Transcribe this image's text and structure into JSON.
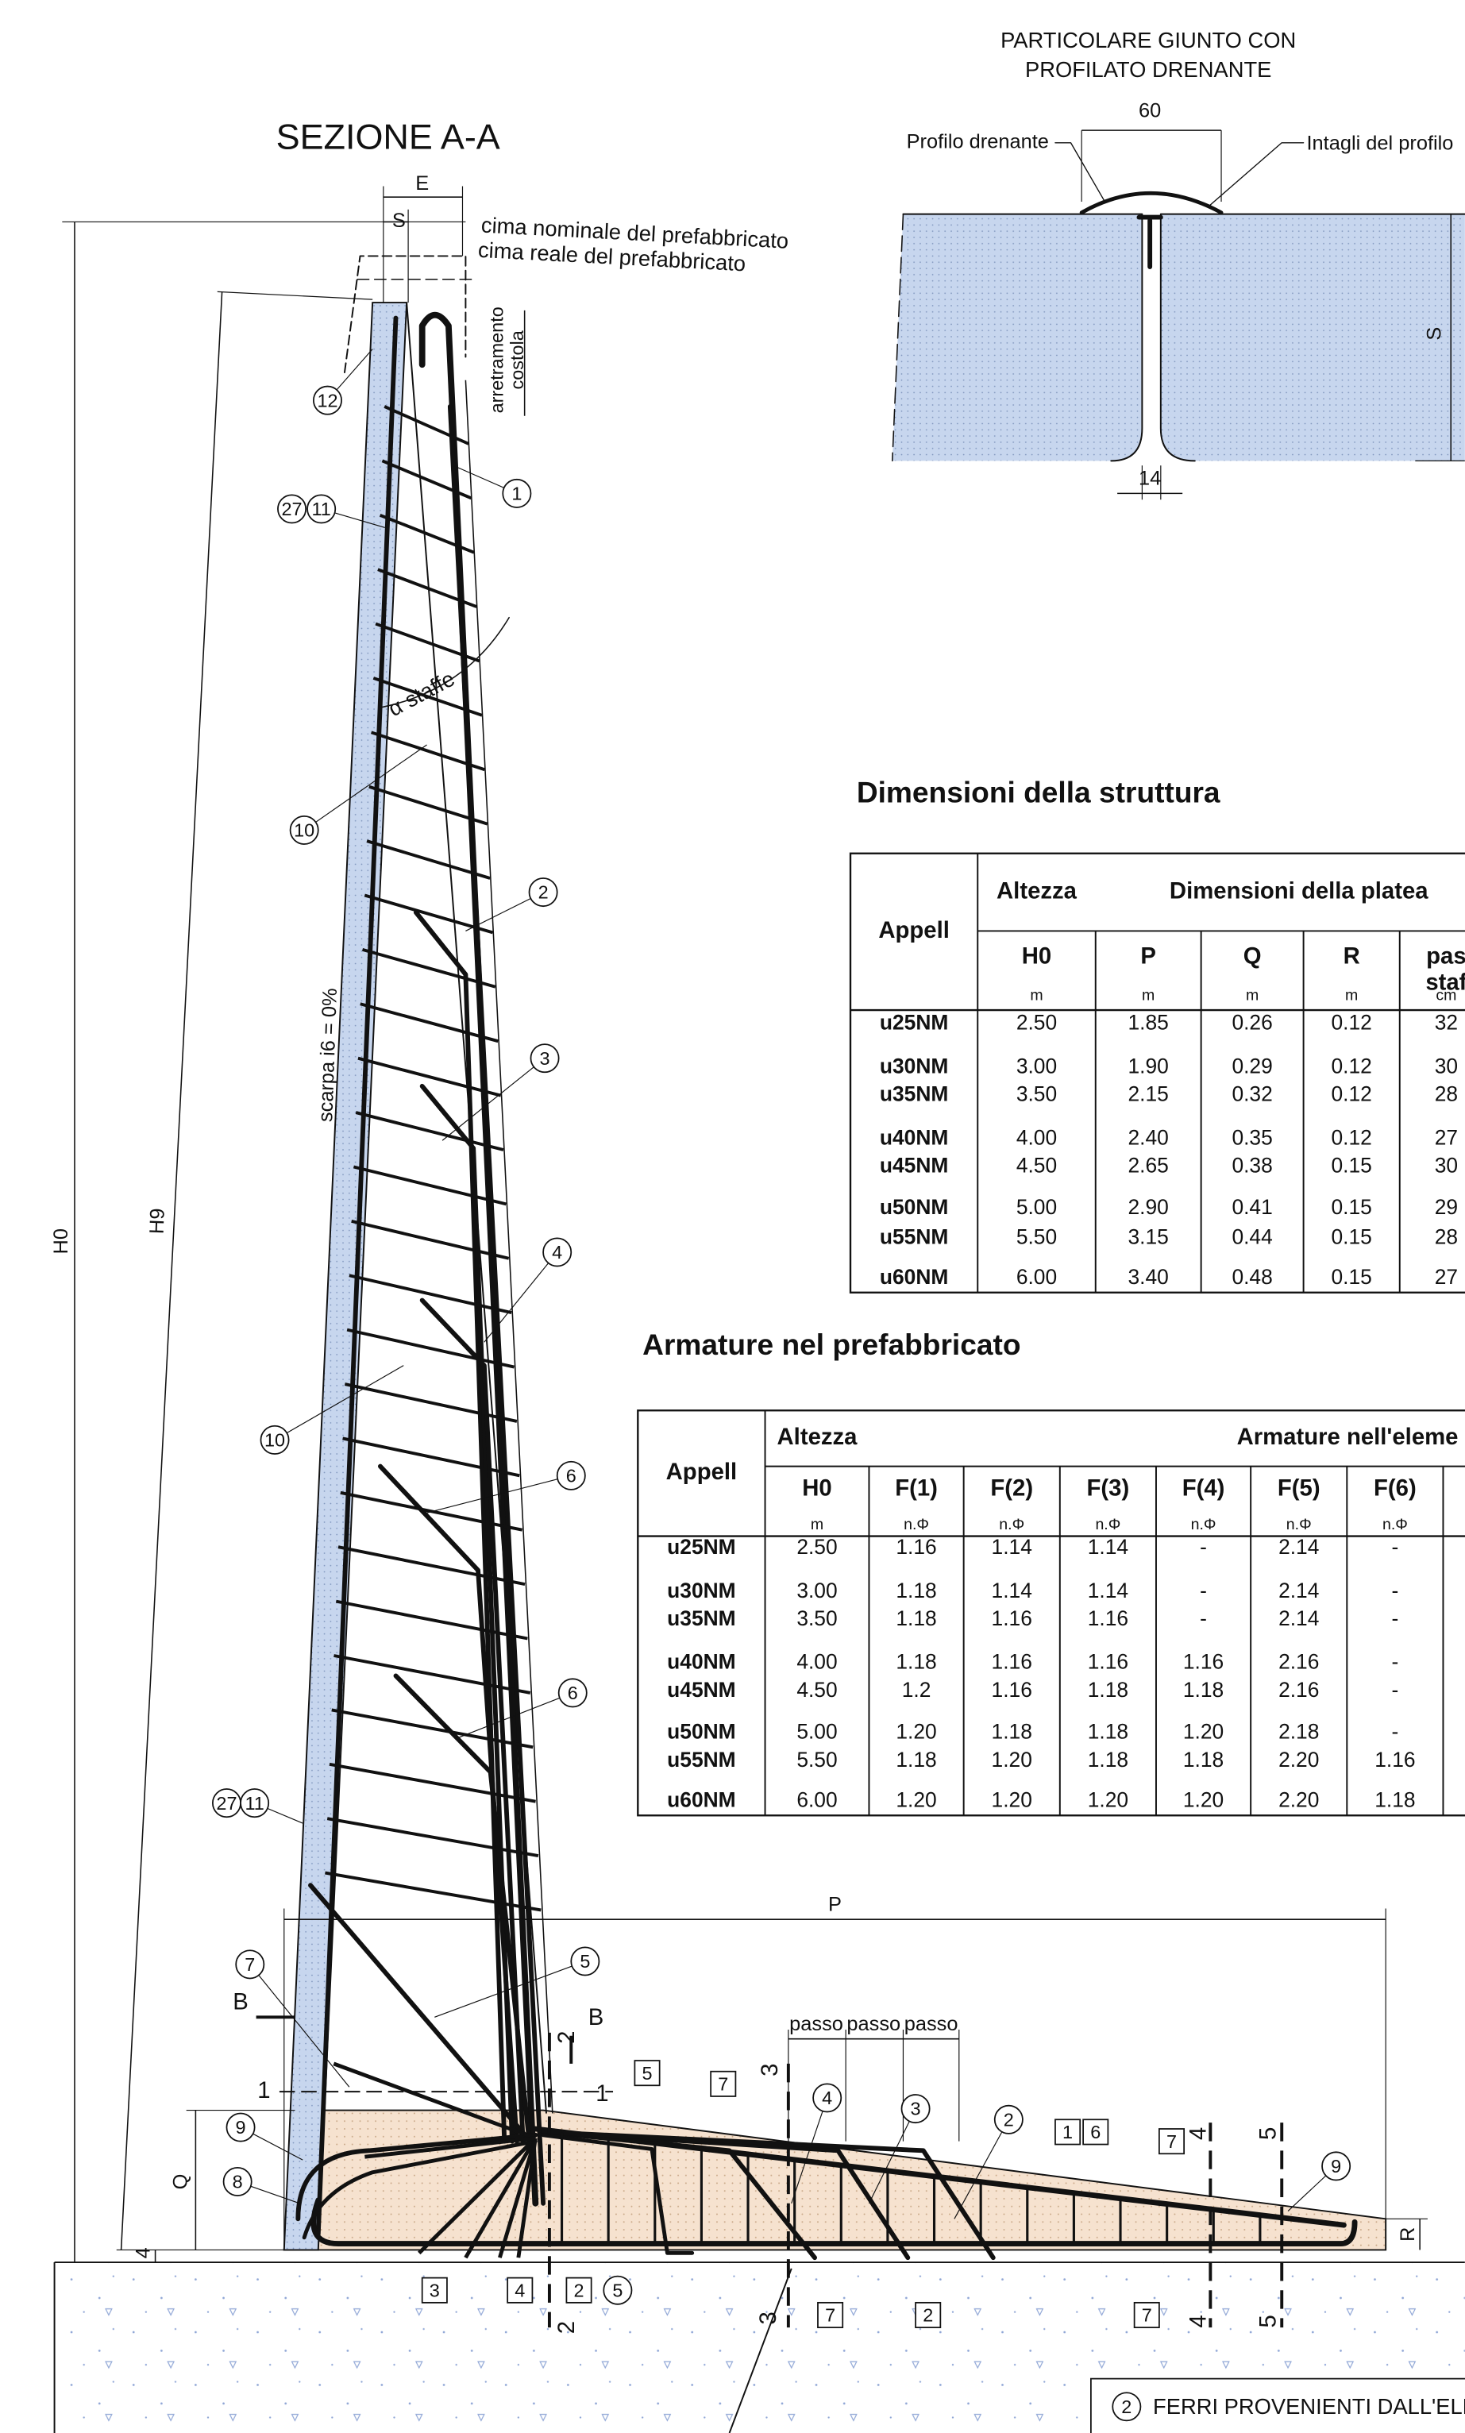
{
  "detail": {
    "title": [
      "PARTICOLARE GIUNTO CON",
      "PROFILATO DRENANTE"
    ],
    "left_label": "Profilo drenante",
    "right_label": "Intagli del profilo",
    "width_dim": "60",
    "gap_dim": "14",
    "height_dim": "S"
  },
  "section": {
    "title": "SEZIONE A-A",
    "top_nominal": "cima nominale del prefabbricato",
    "top_real": "cima reale del prefabbricato",
    "setback": [
      "arretramento",
      "costola"
    ],
    "stirrup_angle": "α staffe",
    "batter": "scarpa i6 = 0%",
    "dims": [
      "E",
      "S",
      "H0",
      "H9",
      "Q",
      "4",
      "P",
      "R",
      "passo",
      "passo",
      "passo"
    ],
    "circled": [
      "12",
      "1",
      "27",
      "11",
      "10",
      "2",
      "3",
      "4",
      "10",
      "6",
      "6",
      "27",
      "11",
      "5",
      "7",
      "9",
      "8",
      "4",
      "3",
      "2",
      "9",
      "5"
    ],
    "boxed": [
      "5",
      "7",
      "1",
      "6",
      "7",
      "3",
      "4",
      "2",
      "7",
      "2",
      "7"
    ],
    "section_marks": [
      "B",
      "2",
      "B",
      "1",
      "1",
      "3",
      "4",
      "5",
      "2",
      "3",
      "4",
      "5"
    ]
  },
  "tables": [
    {
      "title": "Dimensioni della struttura",
      "header_top": [
        "Appell",
        "Altezza",
        "Dimensioni della platea"
      ],
      "header_sub": [
        "H0",
        "P",
        "Q",
        "R",
        "pas",
        "staf"
      ],
      "units": [
        "m",
        "m",
        "m",
        "m",
        "cm"
      ],
      "rows": [
        [
          "u25NM",
          "2.50",
          "1.85",
          "0.26",
          "0.12",
          "32"
        ],
        [
          "u30NM",
          "3.00",
          "1.90",
          "0.29",
          "0.12",
          "30"
        ],
        [
          "u35NM",
          "3.50",
          "2.15",
          "0.32",
          "0.12",
          "28"
        ],
        [
          "u40NM",
          "4.00",
          "2.40",
          "0.35",
          "0.12",
          "27"
        ],
        [
          "u45NM",
          "4.50",
          "2.65",
          "0.38",
          "0.15",
          "30"
        ],
        [
          "u50NM",
          "5.00",
          "2.90",
          "0.41",
          "0.15",
          "29"
        ],
        [
          "u55NM",
          "5.50",
          "3.15",
          "0.44",
          "0.15",
          "28"
        ],
        [
          "u60NM",
          "6.00",
          "3.40",
          "0.48",
          "0.15",
          "27"
        ]
      ]
    },
    {
      "title": "Armature nel prefabbricato",
      "header_top": [
        "Appell",
        "Altezza",
        "Armature nell'eleme"
      ],
      "header_sub": [
        "H0",
        "F(1)",
        "F(2)",
        "F(3)",
        "F(4)",
        "F(5)",
        "F(6)"
      ],
      "units": [
        "m",
        "n.Φ",
        "n.Φ",
        "n.Φ",
        "n.Φ",
        "n.Φ",
        "n.Φ"
      ],
      "rows": [
        [
          "u25NM",
          "2.50",
          "1.16",
          "1.14",
          "1.14",
          "-",
          "2.14",
          "-"
        ],
        [
          "u30NM",
          "3.00",
          "1.18",
          "1.14",
          "1.14",
          "-",
          "2.14",
          "-"
        ],
        [
          "u35NM",
          "3.50",
          "1.18",
          "1.16",
          "1.16",
          "-",
          "2.14",
          "-"
        ],
        [
          "u40NM",
          "4.00",
          "1.18",
          "1.16",
          "1.16",
          "1.16",
          "2.16",
          "-"
        ],
        [
          "u45NM",
          "4.50",
          "1.2",
          "1.16",
          "1.18",
          "1.18",
          "2.16",
          "-"
        ],
        [
          "u50NM",
          "5.00",
          "1.20",
          "1.18",
          "1.18",
          "1.20",
          "2.18",
          "-"
        ],
        [
          "u55NM",
          "5.50",
          "1.18",
          "1.20",
          "1.18",
          "1.18",
          "2.20",
          "1.16"
        ],
        [
          "u60NM",
          "6.00",
          "1.20",
          "1.20",
          "1.20",
          "1.20",
          "2.20",
          "1.18"
        ]
      ]
    }
  ],
  "legend": {
    "marker": "2",
    "text": "FERRI PROVENIENTI DALL'ELE"
  }
}
